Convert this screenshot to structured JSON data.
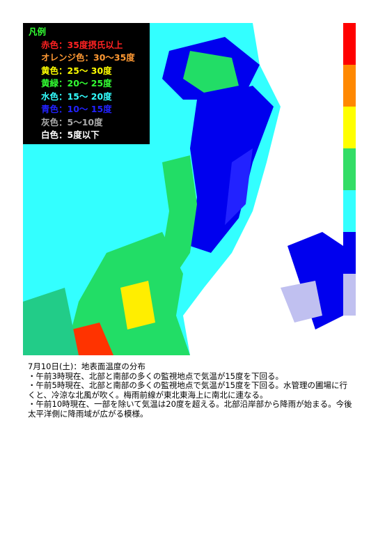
{
  "legend": {
    "title": "凡例",
    "items": [
      "赤色：35度摂氏以上",
      "オレンジ色：30～35度",
      "黄色：25～ 30度",
      "黄緑：20～ 25度",
      "水色：15～ 20度",
      "青色：10～ 15度",
      "灰色：5～10度",
      "白色：5度以下"
    ]
  },
  "caption": {
    "title": "7月10日(土)：地表面温度の分布",
    "lines": [
      "・午前3時現在、北部と南部の多くの監視地点で気温が15度を下回る。",
      "・午前5時現在、北部と南部の多くの監視地点で気温が15度を下回る。水管理の圃場に行くと、冷涼な北風が吹く。梅雨前線が東北東海上に南北に連なる。",
      "・午前10時現在、一部を除いて気温は20度を超える。北部沿岸部から降雨が始まる。今後太平洋側に降雨域が広がる模様。"
    ]
  }
}
